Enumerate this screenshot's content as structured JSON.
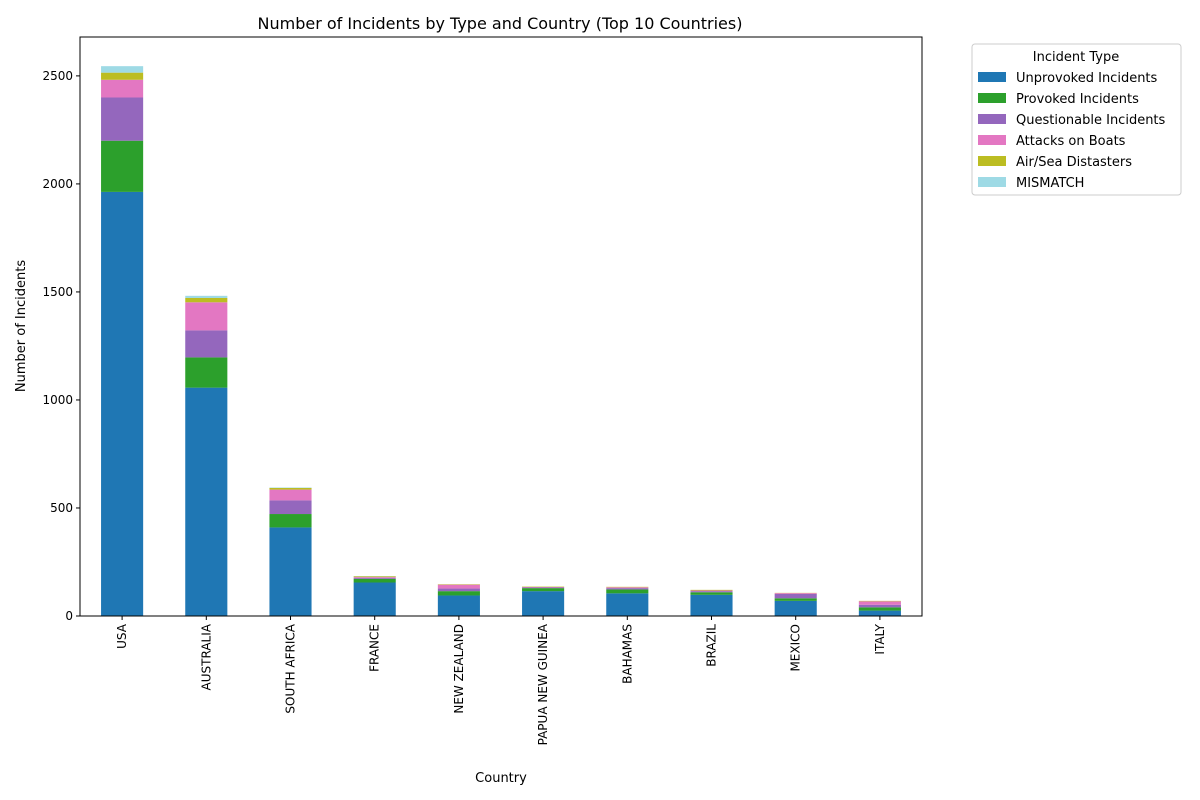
{
  "chart_data": {
    "type": "bar",
    "stacked": true,
    "title": "Number of Incidents by Type and Country (Top 10 Countries)",
    "xlabel": "Country",
    "ylabel": "Number of Incidents",
    "ylim": [
      0,
      2680
    ],
    "yticks": [
      0,
      500,
      1000,
      1500,
      2000,
      2500
    ],
    "grid": false,
    "legend_title": "Incident Type",
    "legend_position": "outside-top-right",
    "categories": [
      "USA",
      "AUSTRALIA",
      "SOUTH AFRICA",
      "FRANCE",
      "NEW ZEALAND",
      "PAPUA NEW GUINEA",
      "BAHAMAS",
      "BRAZIL",
      "MEXICO",
      "ITALY"
    ],
    "series": [
      {
        "name": "Unprovoked Incidents",
        "color": "#1f77b4",
        "values": [
          1963,
          1057,
          410,
          155,
          95,
          115,
          105,
          98,
          70,
          25
        ]
      },
      {
        "name": "Provoked Incidents",
        "color": "#2ca02c",
        "values": [
          237,
          140,
          62,
          17,
          20,
          14,
          18,
          12,
          12,
          15
        ]
      },
      {
        "name": "Questionable Incidents",
        "color": "#9467bd",
        "values": [
          200,
          125,
          63,
          4,
          12,
          3,
          6,
          5,
          20,
          12
        ]
      },
      {
        "name": "Attacks on Boats",
        "color": "#e377c2",
        "values": [
          82,
          130,
          50,
          4,
          18,
          2,
          4,
          3,
          4,
          16
        ]
      },
      {
        "name": "Air/Sea Distasters",
        "color": "#bcbd22",
        "values": [
          33,
          20,
          8,
          4,
          2,
          2,
          2,
          3,
          1,
          2
        ]
      },
      {
        "name": "MISMATCH",
        "color": "#9edae5",
        "values": [
          30,
          10,
          2,
          1,
          0,
          0,
          0,
          0,
          0,
          0
        ]
      }
    ]
  }
}
